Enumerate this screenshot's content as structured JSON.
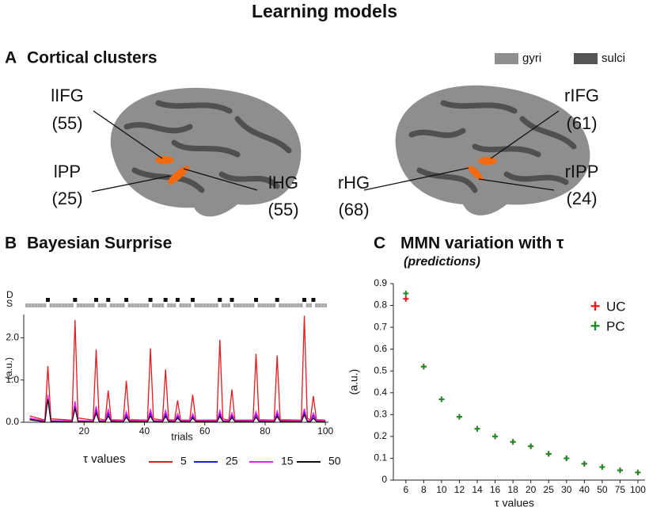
{
  "title": "Learning models",
  "panel_a": {
    "panel_label": "A",
    "title": "Cortical clusters",
    "legend": [
      {
        "name": "gyri",
        "color": "#8e8e8e"
      },
      {
        "name": "sulci",
        "color": "#555555"
      }
    ],
    "clusters": [
      {
        "name": "lIFG",
        "size": "(55)"
      },
      {
        "name": "lPP",
        "size": "(25)"
      },
      {
        "name": "lHG",
        "size": "(55)"
      },
      {
        "name": "rIFG",
        "size": "(61)"
      },
      {
        "name": "rHG",
        "size": "(68)"
      },
      {
        "name": "rIPP",
        "size": "(24)"
      }
    ]
  },
  "chart_data": [
    {
      "type": "line",
      "panel_label": "B",
      "title": "Bayesian Surprise",
      "xlabel": "trials",
      "ylabel": "(a.u.)",
      "row_labels": [
        "D",
        "S"
      ],
      "deviant_trials": [
        8,
        17,
        24,
        28,
        34,
        42,
        47,
        51,
        56,
        65,
        69,
        77,
        84,
        93,
        96
      ],
      "legend_title": "τ values",
      "x": [
        2,
        7,
        8,
        9,
        16,
        17,
        18,
        23,
        24,
        25,
        27,
        28,
        29,
        33,
        34,
        35,
        41,
        42,
        43,
        46,
        47,
        48,
        50,
        51,
        52,
        55,
        56,
        57,
        64,
        65,
        66,
        68,
        69,
        70,
        76,
        77,
        78,
        83,
        84,
        85,
        92,
        93,
        94,
        95,
        96,
        97,
        100
      ],
      "series": [
        {
          "name": "5",
          "color": "#e8191c",
          "values": [
            0.15,
            0.05,
            1.33,
            0.08,
            0.05,
            2.42,
            0.1,
            0.05,
            1.72,
            0.08,
            0.05,
            0.75,
            0.06,
            0.05,
            0.98,
            0.06,
            0.05,
            1.75,
            0.08,
            0.05,
            1.25,
            0.06,
            0.05,
            0.52,
            0.05,
            0.05,
            0.65,
            0.05,
            0.05,
            1.95,
            0.08,
            0.05,
            0.78,
            0.05,
            0.05,
            1.62,
            0.06,
            0.05,
            1.58,
            0.06,
            0.05,
            2.52,
            0.1,
            0.05,
            0.62,
            0.06,
            0.05
          ]
        },
        {
          "name": "25",
          "color": "#1a1ae6",
          "values": [
            0.08,
            0.02,
            0.6,
            0.03,
            0.02,
            0.4,
            0.03,
            0.02,
            0.3,
            0.03,
            0.02,
            0.22,
            0.03,
            0.02,
            0.18,
            0.03,
            0.02,
            0.22,
            0.03,
            0.02,
            0.2,
            0.03,
            0.02,
            0.14,
            0.03,
            0.02,
            0.14,
            0.03,
            0.02,
            0.2,
            0.03,
            0.02,
            0.16,
            0.03,
            0.02,
            0.18,
            0.03,
            0.02,
            0.2,
            0.03,
            0.02,
            0.24,
            0.03,
            0.02,
            0.16,
            0.03,
            0.02
          ]
        },
        {
          "name": "15",
          "color": "#f01af0",
          "values": [
            0.1,
            0.03,
            0.65,
            0.04,
            0.03,
            0.5,
            0.04,
            0.03,
            0.38,
            0.04,
            0.03,
            0.3,
            0.04,
            0.03,
            0.25,
            0.04,
            0.03,
            0.3,
            0.04,
            0.03,
            0.28,
            0.04,
            0.03,
            0.2,
            0.04,
            0.03,
            0.2,
            0.04,
            0.03,
            0.28,
            0.04,
            0.03,
            0.22,
            0.04,
            0.03,
            0.25,
            0.04,
            0.03,
            0.27,
            0.04,
            0.03,
            0.32,
            0.04,
            0.03,
            0.22,
            0.04,
            0.03
          ]
        },
        {
          "name": "50",
          "color": "#111111",
          "values": [
            0.06,
            0.01,
            0.55,
            0.02,
            0.01,
            0.33,
            0.02,
            0.01,
            0.22,
            0.02,
            0.01,
            0.15,
            0.02,
            0.01,
            0.12,
            0.02,
            0.01,
            0.15,
            0.02,
            0.01,
            0.14,
            0.02,
            0.01,
            0.1,
            0.02,
            0.01,
            0.1,
            0.02,
            0.01,
            0.14,
            0.02,
            0.01,
            0.11,
            0.02,
            0.01,
            0.12,
            0.02,
            0.01,
            0.14,
            0.02,
            0.01,
            0.18,
            0.02,
            0.01,
            0.1,
            0.02,
            0.01
          ]
        }
      ],
      "xlim": [
        0,
        101
      ],
      "xticks": [
        20,
        40,
        60,
        80,
        100
      ],
      "ylim": [
        0,
        2.55
      ],
      "yticks": [
        {
          "value": 0,
          "label": "0.0"
        },
        {
          "value": 1,
          "label": "1.0"
        },
        {
          "value": 2,
          "label": "2.0"
        }
      ]
    },
    {
      "type": "scatter",
      "panel_label": "C",
      "title": "MMN variation with τ",
      "subtitle": "(predictions)",
      "xlabel": "τ values",
      "ylabel": "(a.u.)",
      "marker": "+",
      "categories": [
        6,
        8,
        10,
        12,
        14,
        16,
        18,
        20,
        25,
        30,
        40,
        50,
        75,
        100
      ],
      "series": [
        {
          "name": "UC",
          "color": "#e8191c",
          "values": [
            0.83,
            0.52,
            0.37,
            0.29,
            0.235,
            0.2,
            0.175,
            0.155,
            0.12,
            0.1,
            0.075,
            0.06,
            0.045,
            0.035
          ]
        },
        {
          "name": "PC",
          "color": "#1e8c2a",
          "values": [
            0.855,
            0.52,
            0.37,
            0.29,
            0.235,
            0.2,
            0.175,
            0.155,
            0.12,
            0.1,
            0.075,
            0.06,
            0.045,
            0.035
          ]
        }
      ],
      "ylim": [
        0,
        0.9
      ],
      "yticks": [
        0,
        0.1,
        0.2,
        0.3,
        0.4,
        0.5,
        0.6,
        0.7,
        0.8,
        0.9
      ]
    }
  ]
}
